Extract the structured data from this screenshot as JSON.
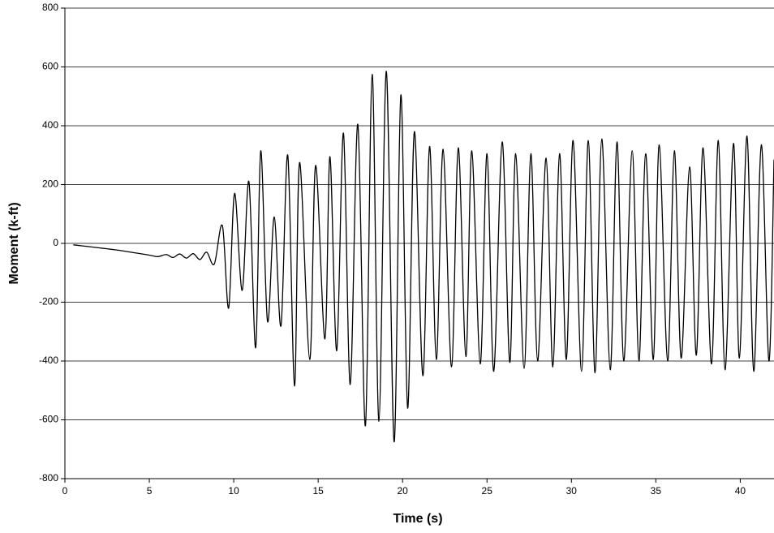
{
  "chart_data": {
    "type": "line",
    "x_label": "Time (s)",
    "y_label": "Moment (k-ft)",
    "xlim": [
      0,
      42
    ],
    "xticks": [
      0,
      5,
      10,
      15,
      20,
      25,
      30,
      35,
      40
    ],
    "ylim": [
      -800,
      800
    ],
    "yticks": [
      -800,
      -600,
      -400,
      -200,
      0,
      200,
      400,
      600,
      800
    ],
    "grid": true,
    "x": [
      0.5,
      3,
      5,
      5.5,
      6,
      6.4,
      6.8,
      7.2,
      7.6,
      8.0,
      8.4,
      8.85,
      9.33,
      9.7,
      10.05,
      10.5,
      10.9,
      11.3,
      11.6,
      12.0,
      12.4,
      12.8,
      13.2,
      13.6,
      13.9,
      14.5,
      14.85,
      15.4,
      15.7,
      16.1,
      16.5,
      16.9,
      17.35,
      17.8,
      18.2,
      18.6,
      19.04,
      19.5,
      19.9,
      20.3,
      20.7,
      21.2,
      21.6,
      22.0,
      22.4,
      22.9,
      23.3,
      23.75,
      24.1,
      24.6,
      25.0,
      25.4,
      25.9,
      26.35,
      26.7,
      27.2,
      27.6,
      28.0,
      28.5,
      28.9,
      29.3,
      29.7,
      30.1,
      30.6,
      31.0,
      31.4,
      31.8,
      32.3,
      32.7,
      33.1,
      33.6,
      34.0,
      34.4,
      34.85,
      35.2,
      35.7,
      36.1,
      36.5,
      37.0,
      37.4,
      37.8,
      38.3,
      38.7,
      39.1,
      39.6,
      39.95,
      40.4,
      40.8,
      41.25,
      41.7,
      42
    ],
    "series": [
      {
        "color": "#000000",
        "values": [
          -5,
          -22,
          -40,
          -45,
          -38,
          -48,
          -36,
          -50,
          -35,
          -55,
          -30,
          -70,
          60,
          -220,
          170,
          -160,
          210,
          -355,
          315,
          -265,
          90,
          -280,
          300,
          -485,
          275,
          -395,
          265,
          -325,
          295,
          -365,
          375,
          -480,
          405,
          -620,
          575,
          -605,
          585,
          -675,
          505,
          -560,
          380,
          -450,
          330,
          -395,
          320,
          -420,
          325,
          -385,
          315,
          -410,
          305,
          -435,
          345,
          -405,
          305,
          -425,
          305,
          -400,
          290,
          -420,
          305,
          -395,
          350,
          -435,
          350,
          -440,
          355,
          -430,
          345,
          -400,
          315,
          -400,
          305,
          -395,
          335,
          -400,
          315,
          -390,
          260,
          -380,
          325,
          -410,
          350,
          -430,
          340,
          -390,
          365,
          -435,
          335,
          -400,
          285
        ]
      }
    ]
  }
}
